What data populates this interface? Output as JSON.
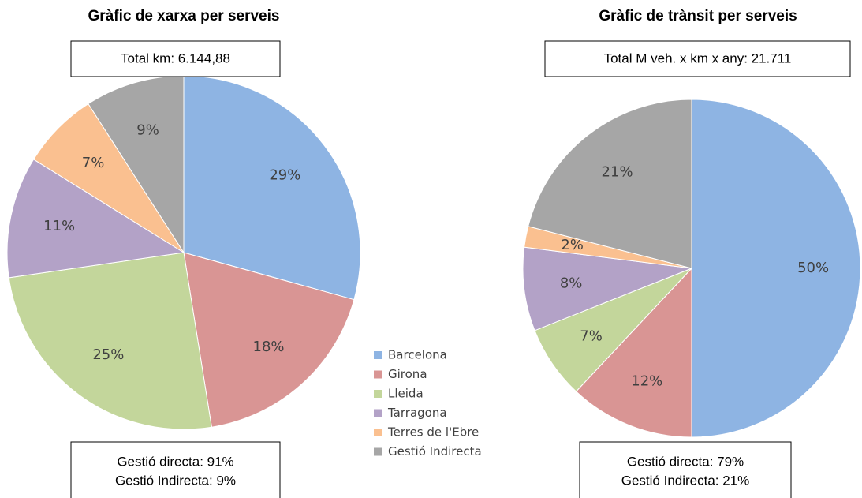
{
  "chart_data": [
    {
      "type": "pie",
      "title": "Gràfic de xarxa per serveis",
      "annotations": [
        "Total km: 6.144,88",
        "Gestió directa: 91%",
        "Gestió Indirecta: 9%"
      ],
      "categories": [
        "Barcelona",
        "Girona",
        "Lleida",
        "Tarragona",
        "Terres de l'Ebre",
        "Gestió Indirecta"
      ],
      "values": [
        29,
        18,
        25,
        11,
        7,
        9
      ],
      "value_labels": [
        "29%",
        "18%",
        "25%",
        "11%",
        "7%",
        "9%"
      ],
      "colors": [
        "#8eb4e3",
        "#d99594",
        "#c3d69b",
        "#b3a2c7",
        "#fac090",
        "#a6a6a6"
      ]
    },
    {
      "type": "pie",
      "title": "Gràfic de trànsit per serveis",
      "annotations": [
        "Total M veh. x km x any: 21.711",
        "Gestió directa: 79%",
        "Gestió Indirecta: 21%"
      ],
      "values": [
        50,
        12,
        7,
        8,
        2,
        21
      ],
      "value_labels": [
        "50%",
        "12%",
        "7%",
        "8%",
        "2%",
        "21%"
      ],
      "colors": [
        "#8eb4e3",
        "#d99594",
        "#c3d69b",
        "#b3a2c7",
        "#fac090",
        "#a6a6a6"
      ]
    }
  ]
}
